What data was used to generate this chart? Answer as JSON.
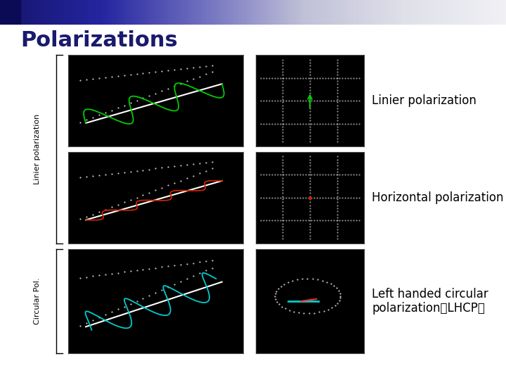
{
  "title": "Polarizations",
  "bg_color": "#ffffff",
  "title_color": "#1a1a6e",
  "title_fontsize": 22,
  "panel_bg": "#000000",
  "label1": "Linier polarization",
  "label2": "Horizontal polarization",
  "label3": "Left handed circular\npolarization（LHCP）",
  "bracket_label1": "Linier polarization",
  "bracket_label2": "Circular Pol.",
  "label_fontsize": 12,
  "bracket_fontsize": 9,
  "green_color": "#00cc00",
  "red_color": "#cc2200",
  "cyan_color": "#00cccc",
  "white_color": "#ffffff",
  "dot_color": "#ffffff"
}
